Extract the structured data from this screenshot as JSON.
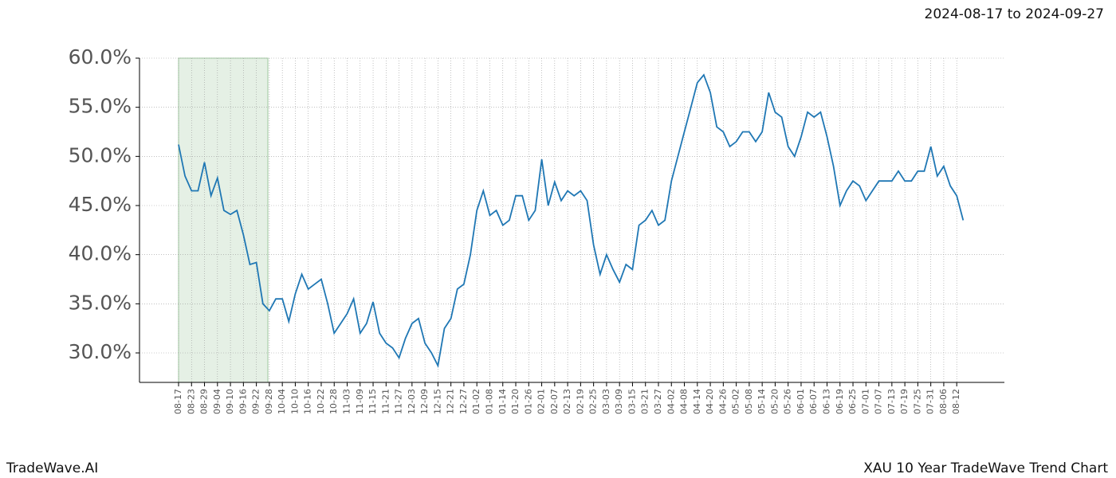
{
  "chart_data": {
    "type": "line",
    "title": "2024-08-17 to 2024-09-27",
    "footer_left": "TradeWave.AI",
    "footer_right": "XAU 10 Year TradeWave Trend Chart",
    "categories": [
      "08-17",
      null,
      "08-23",
      null,
      "08-29",
      null,
      "09-04",
      null,
      "09-10",
      null,
      "09-16",
      null,
      "09-22",
      null,
      "09-28",
      null,
      "10-04",
      null,
      "10-10",
      null,
      "10-16",
      null,
      "10-22",
      null,
      "10-28",
      null,
      "11-03",
      null,
      "11-09",
      null,
      "11-15",
      null,
      "11-21",
      null,
      "11-27",
      null,
      "12-03",
      null,
      "12-09",
      null,
      "12-15",
      null,
      "12-21",
      null,
      "12-27",
      null,
      "01-02",
      null,
      "01-08",
      null,
      "01-14",
      null,
      "01-20",
      null,
      "01-26",
      null,
      "02-01",
      null,
      "02-07",
      null,
      "02-13",
      null,
      "02-19",
      null,
      "02-25",
      null,
      "03-03",
      null,
      "03-09",
      null,
      "03-15",
      null,
      "03-21",
      null,
      "03-27",
      null,
      "04-02",
      null,
      "04-08",
      null,
      "04-14",
      null,
      "04-20",
      null,
      "04-26",
      null,
      "05-02",
      null,
      "05-08",
      null,
      "05-14",
      null,
      "05-20",
      null,
      "05-26",
      null,
      "06-01",
      null,
      "06-07",
      null,
      "06-13",
      null,
      "06-19",
      null,
      "06-25",
      null,
      "07-01",
      null,
      "07-07",
      null,
      "07-13",
      null,
      "07-19",
      null,
      "07-25",
      null,
      "07-31",
      null,
      "08-06",
      null,
      "08-12",
      null
    ],
    "series": [
      {
        "color": "#1f77b4",
        "values": [
          51.2,
          48,
          46.5,
          46.5,
          49.4,
          46,
          47.8,
          44.5,
          44.1,
          44.5,
          42,
          39,
          39.2,
          35,
          34.3,
          35.5,
          35.5,
          33.2,
          36,
          38,
          36.5,
          37,
          37.5,
          35,
          32,
          33,
          34,
          35.5,
          32,
          33,
          35.2,
          32,
          31,
          30.5,
          29.5,
          31.5,
          33,
          33.5,
          31,
          30,
          28.7,
          32.5,
          33.5,
          36.5,
          37,
          40,
          44.5,
          46.5,
          44,
          44.5,
          43,
          43.5,
          46,
          46,
          43.5,
          44.5,
          49.7,
          45,
          47.4,
          45.5,
          46.5,
          46,
          46.5,
          45.5,
          41,
          38,
          40,
          38.5,
          37.2,
          39,
          38.5,
          43,
          43.5,
          44.5,
          43,
          43.5,
          47.5,
          50,
          52.5,
          55,
          57.5,
          58.3,
          56.5,
          53,
          52.5,
          51,
          51.5,
          52.5,
          52.5,
          51.5,
          52.5,
          56.5,
          54.5,
          54,
          51,
          50,
          52,
          54.5,
          54,
          54.5,
          52,
          49,
          45,
          46.5,
          47.5,
          47,
          45.5,
          46.5,
          47.5,
          47.5,
          47.5,
          48.5,
          47.5,
          47.5,
          48.5,
          48.5,
          51,
          48,
          49,
          47,
          46,
          43.5
        ]
      }
    ],
    "ylim": [
      27,
      60
    ],
    "yticks": [
      {
        "value": 30,
        "label": "30.0%"
      },
      {
        "value": 35,
        "label": "35.0%"
      },
      {
        "value": 40,
        "label": "40.0%"
      },
      {
        "value": 45,
        "label": "45.0%"
      },
      {
        "value": 50,
        "label": "50.0%"
      },
      {
        "value": 55,
        "label": "55.0%"
      },
      {
        "value": 60,
        "label": "60.0%"
      }
    ],
    "grid": true
  }
}
